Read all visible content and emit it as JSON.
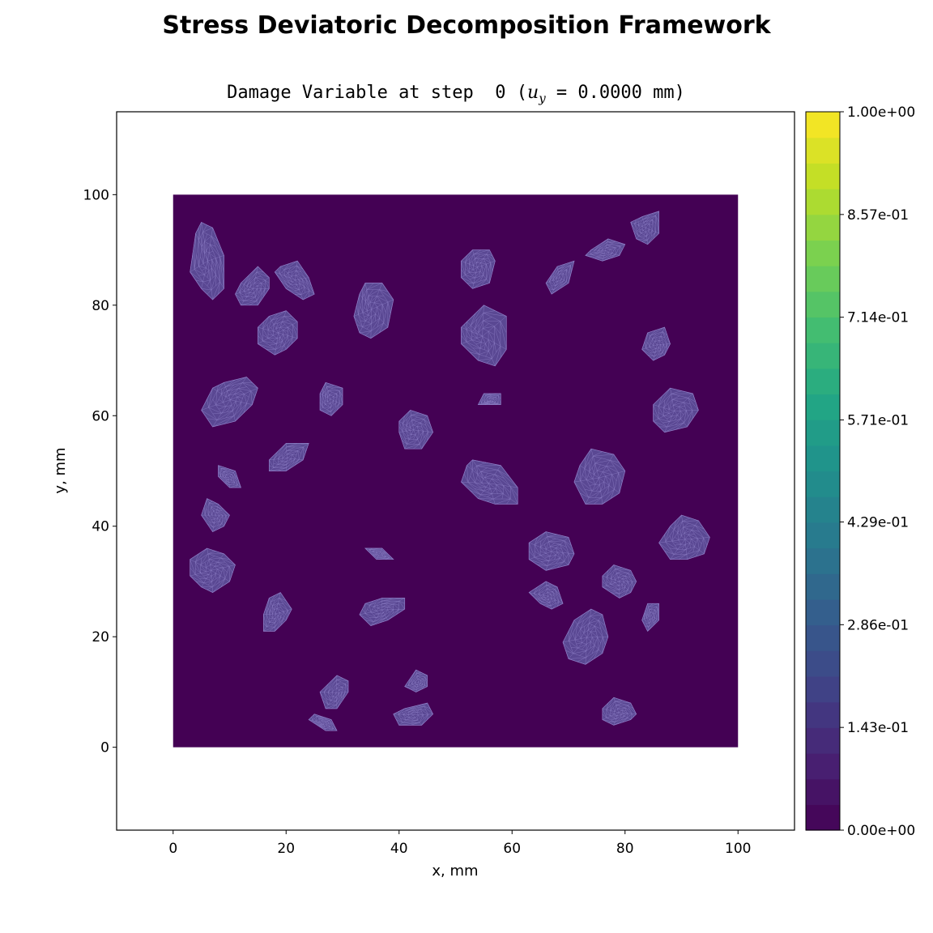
{
  "figure": {
    "title": "Stress Deviatoric Decomposition Framework",
    "plot_title_prefix": "Damage Variable at step  0 (",
    "plot_title_var": "u",
    "plot_title_sub": "y",
    "plot_title_suffix": " = 0.0000 mm)"
  },
  "chart_data": {
    "type": "heatmap",
    "xlabel": "x, mm",
    "ylabel": "y, mm",
    "xlim": [
      -10,
      110
    ],
    "ylim": [
      -15,
      115
    ],
    "x_ticks": [
      0,
      20,
      40,
      60,
      80,
      100
    ],
    "y_ticks": [
      0,
      20,
      40,
      60,
      80,
      100
    ],
    "domain": {
      "x": [
        0,
        100
      ],
      "y": [
        0,
        100
      ]
    },
    "field_value": 0.0,
    "grid": false,
    "colormap": "viridis",
    "background_color": "#440154",
    "mesh_color": "#8e7fc7",
    "colorbar": {
      "vmin": 0.0,
      "vmax": 1.0,
      "levels": 21,
      "tick_values": [
        0.0,
        0.143,
        0.286,
        0.429,
        0.571,
        0.714,
        0.857,
        1.0
      ],
      "tick_labels": [
        "0.00e+00",
        "1.43e-01",
        "2.86e-01",
        "4.29e-01",
        "5.71e-01",
        "7.14e-01",
        "8.57e-01",
        "1.00e+00"
      ]
    },
    "inclusions": [
      [
        [
          5,
          95
        ],
        [
          7,
          94
        ],
        [
          9,
          89
        ],
        [
          9,
          83
        ],
        [
          7,
          81
        ],
        [
          5,
          83
        ],
        [
          3,
          86
        ],
        [
          4,
          93
        ]
      ],
      [
        [
          12,
          84
        ],
        [
          15,
          87
        ],
        [
          17,
          85
        ],
        [
          17,
          83
        ],
        [
          15,
          80
        ],
        [
          12,
          80
        ],
        [
          11,
          82
        ]
      ],
      [
        [
          19,
          87
        ],
        [
          22,
          88
        ],
        [
          24,
          85
        ],
        [
          25,
          82
        ],
        [
          23,
          81
        ],
        [
          20,
          83
        ],
        [
          18,
          86
        ]
      ],
      [
        [
          17,
          78
        ],
        [
          20,
          79
        ],
        [
          22,
          77
        ],
        [
          22,
          74
        ],
        [
          20,
          72
        ],
        [
          18,
          71
        ],
        [
          15,
          73
        ],
        [
          15,
          76
        ]
      ],
      [
        [
          34,
          84
        ],
        [
          37,
          84
        ],
        [
          39,
          81
        ],
        [
          38,
          76
        ],
        [
          35,
          74
        ],
        [
          33,
          75
        ],
        [
          32,
          78
        ],
        [
          33,
          82
        ]
      ],
      [
        [
          53,
          90
        ],
        [
          56,
          90
        ],
        [
          57,
          88
        ],
        [
          56,
          84
        ],
        [
          53,
          83
        ],
        [
          51,
          85
        ],
        [
          51,
          88
        ]
      ],
      [
        [
          68,
          87
        ],
        [
          71,
          88
        ],
        [
          70,
          84
        ],
        [
          67,
          82
        ],
        [
          66,
          84
        ]
      ],
      [
        [
          74,
          90
        ],
        [
          77,
          92
        ],
        [
          80,
          91
        ],
        [
          79,
          89
        ],
        [
          76,
          88
        ],
        [
          73,
          89
        ]
      ],
      [
        [
          83,
          96
        ],
        [
          86,
          97
        ],
        [
          86,
          93
        ],
        [
          84,
          91
        ],
        [
          82,
          92
        ],
        [
          81,
          95
        ]
      ],
      [
        [
          52,
          77
        ],
        [
          55,
          80
        ],
        [
          59,
          78
        ],
        [
          59,
          72
        ],
        [
          57,
          69
        ],
        [
          54,
          70
        ],
        [
          51,
          73
        ],
        [
          51,
          76
        ]
      ],
      [
        [
          84,
          75
        ],
        [
          87,
          76
        ],
        [
          88,
          73
        ],
        [
          87,
          71
        ],
        [
          85,
          70
        ],
        [
          83,
          72
        ]
      ],
      [
        [
          9,
          66
        ],
        [
          13,
          67
        ],
        [
          15,
          65
        ],
        [
          14,
          62
        ],
        [
          11,
          59
        ],
        [
          7,
          58
        ],
        [
          5,
          61
        ],
        [
          7,
          65
        ]
      ],
      [
        [
          27,
          66
        ],
        [
          30,
          65
        ],
        [
          30,
          62
        ],
        [
          28,
          60
        ],
        [
          26,
          61
        ],
        [
          26,
          64
        ]
      ],
      [
        [
          55,
          64
        ],
        [
          58,
          64
        ],
        [
          58,
          62
        ],
        [
          56,
          62
        ],
        [
          54,
          62
        ]
      ],
      [
        [
          88,
          65
        ],
        [
          92,
          64
        ],
        [
          93,
          61
        ],
        [
          91,
          58
        ],
        [
          87,
          57
        ],
        [
          85,
          59
        ],
        [
          85,
          62
        ]
      ],
      [
        [
          42,
          61
        ],
        [
          45,
          60
        ],
        [
          46,
          57
        ],
        [
          44,
          54
        ],
        [
          41,
          54
        ],
        [
          40,
          57
        ],
        [
          40,
          59
        ]
      ],
      [
        [
          20,
          55
        ],
        [
          24,
          55
        ],
        [
          23,
          52
        ],
        [
          20,
          50
        ],
        [
          17,
          50
        ],
        [
          17,
          52
        ]
      ],
      [
        [
          53,
          52
        ],
        [
          58,
          51
        ],
        [
          61,
          47
        ],
        [
          61,
          44
        ],
        [
          57,
          44
        ],
        [
          54,
          45
        ],
        [
          51,
          48
        ],
        [
          52,
          51
        ]
      ],
      [
        [
          74,
          54
        ],
        [
          78,
          53
        ],
        [
          80,
          50
        ],
        [
          79,
          46
        ],
        [
          76,
          44
        ],
        [
          73,
          44
        ],
        [
          71,
          48
        ],
        [
          72,
          51
        ]
      ],
      [
        [
          8,
          51
        ],
        [
          11,
          50
        ],
        [
          12,
          47
        ],
        [
          10,
          47
        ],
        [
          8,
          49
        ]
      ],
      [
        [
          6,
          45
        ],
        [
          8,
          44
        ],
        [
          10,
          42
        ],
        [
          9,
          40
        ],
        [
          7,
          39
        ],
        [
          5,
          42
        ]
      ],
      [
        [
          66,
          39
        ],
        [
          70,
          38
        ],
        [
          71,
          35
        ],
        [
          70,
          33
        ],
        [
          66,
          32
        ],
        [
          63,
          34
        ],
        [
          63,
          37
        ]
      ],
      [
        [
          90,
          42
        ],
        [
          93,
          41
        ],
        [
          95,
          38
        ],
        [
          94,
          35
        ],
        [
          91,
          34
        ],
        [
          88,
          34
        ],
        [
          86,
          37
        ],
        [
          88,
          40
        ]
      ],
      [
        [
          6,
          36
        ],
        [
          9,
          35
        ],
        [
          11,
          33
        ],
        [
          10,
          30
        ],
        [
          7,
          28
        ],
        [
          5,
          29
        ],
        [
          3,
          31
        ],
        [
          3,
          34
        ]
      ],
      [
        [
          34,
          36
        ],
        [
          37,
          36
        ],
        [
          39,
          34
        ],
        [
          36,
          34
        ]
      ],
      [
        [
          78,
          33
        ],
        [
          81,
          32
        ],
        [
          82,
          30
        ],
        [
          81,
          28
        ],
        [
          79,
          27
        ],
        [
          76,
          29
        ],
        [
          76,
          31
        ]
      ],
      [
        [
          66,
          30
        ],
        [
          68,
          29
        ],
        [
          69,
          26
        ],
        [
          67,
          25
        ],
        [
          65,
          26
        ],
        [
          63,
          28
        ]
      ],
      [
        [
          37,
          27
        ],
        [
          41,
          27
        ],
        [
          41,
          25
        ],
        [
          38,
          23
        ],
        [
          35,
          22
        ],
        [
          33,
          24
        ],
        [
          34,
          26
        ]
      ],
      [
        [
          17,
          27
        ],
        [
          19,
          28
        ],
        [
          21,
          25
        ],
        [
          20,
          23
        ],
        [
          18,
          21
        ],
        [
          16,
          21
        ],
        [
          16,
          24
        ]
      ],
      [
        [
          74,
          25
        ],
        [
          76,
          24
        ],
        [
          77,
          20
        ],
        [
          76,
          17
        ],
        [
          73,
          15
        ],
        [
          70,
          16
        ],
        [
          69,
          19
        ],
        [
          71,
          23
        ]
      ],
      [
        [
          84,
          26
        ],
        [
          86,
          26
        ],
        [
          86,
          23
        ],
        [
          84,
          21
        ],
        [
          83,
          23
        ]
      ],
      [
        [
          29,
          13
        ],
        [
          31,
          12
        ],
        [
          31,
          10
        ],
        [
          29,
          7
        ],
        [
          27,
          7
        ],
        [
          26,
          10
        ]
      ],
      [
        [
          43,
          14
        ],
        [
          45,
          13
        ],
        [
          45,
          11
        ],
        [
          43,
          10
        ],
        [
          41,
          11
        ]
      ],
      [
        [
          78,
          9
        ],
        [
          81,
          8
        ],
        [
          82,
          6
        ],
        [
          81,
          5
        ],
        [
          78,
          4
        ],
        [
          76,
          5
        ],
        [
          76,
          7
        ]
      ],
      [
        [
          41,
          7
        ],
        [
          45,
          8
        ],
        [
          46,
          6
        ],
        [
          44,
          4
        ],
        [
          40,
          4
        ],
        [
          39,
          6
        ]
      ],
      [
        [
          25,
          6
        ],
        [
          28,
          5
        ],
        [
          29,
          3
        ],
        [
          27,
          3
        ],
        [
          24,
          5
        ]
      ]
    ]
  }
}
